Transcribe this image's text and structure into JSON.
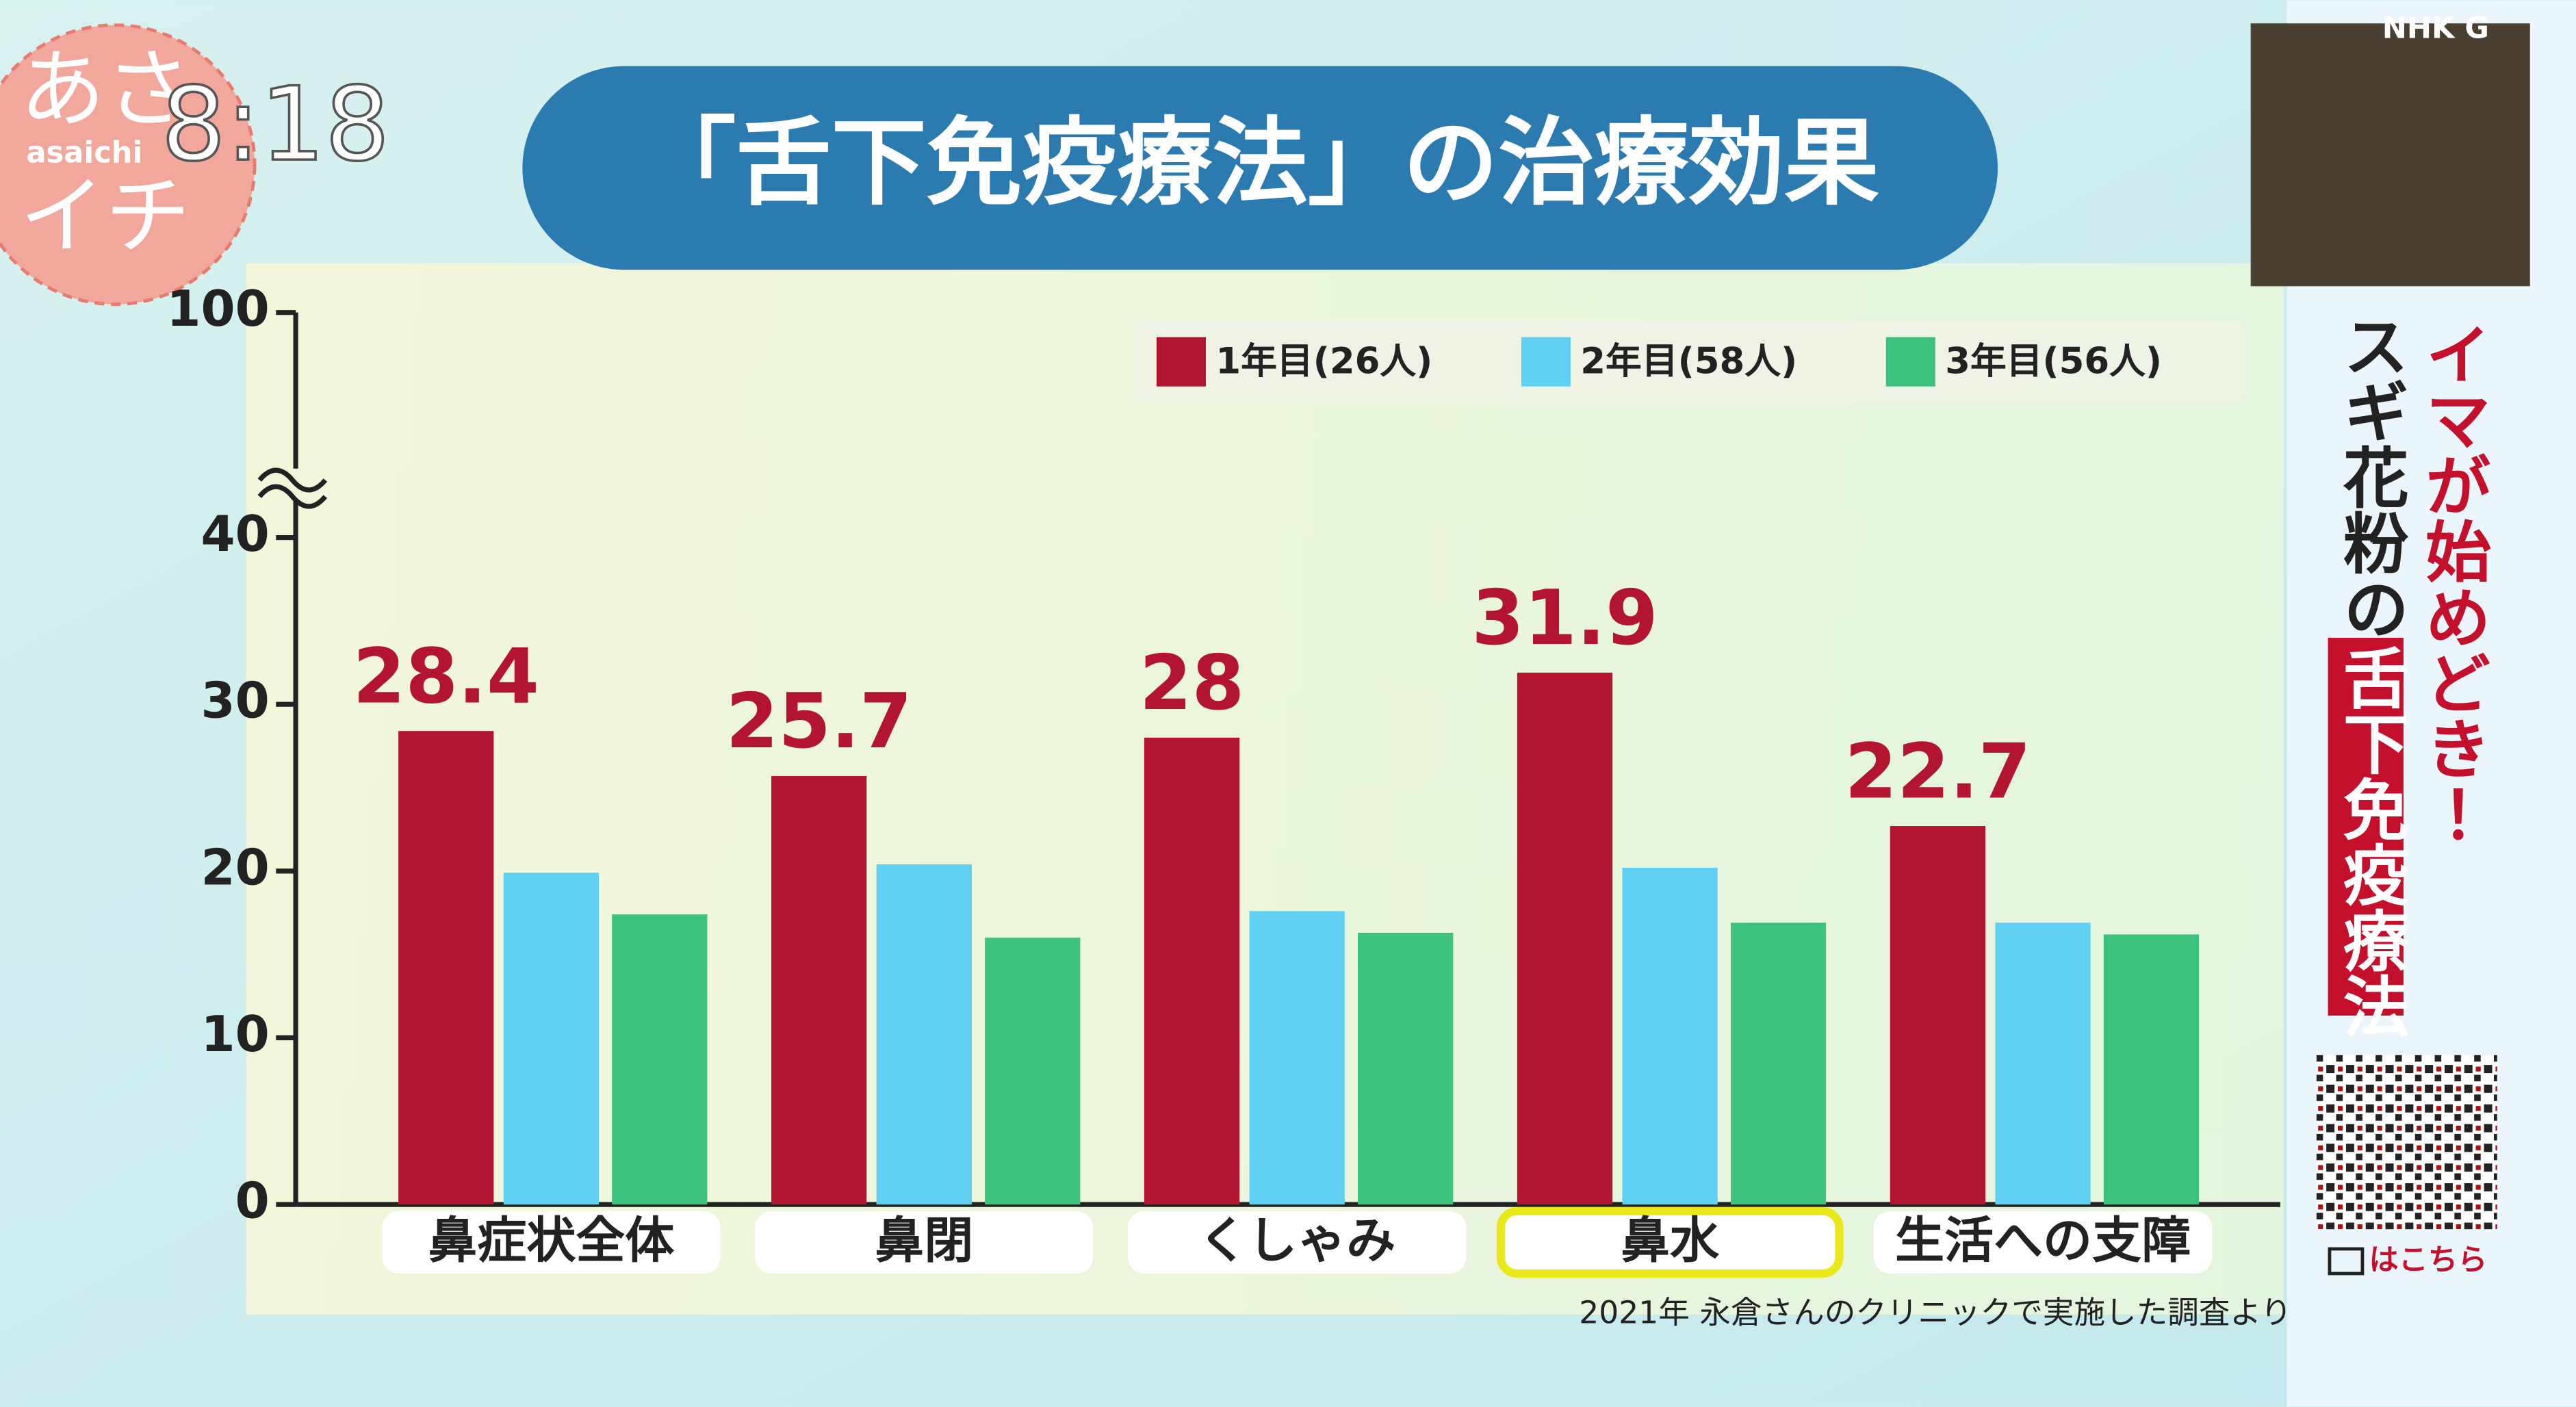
{
  "chart_data": {
    "type": "bar",
    "title": "「舌下免疫療法」の治療効果",
    "categories": [
      "鼻症状全体",
      "鼻閉",
      "くしゃみ",
      "鼻水",
      "生活への支障"
    ],
    "series": [
      {
        "name": "1年目(26人)",
        "color": "#b3142f",
        "values": [
          28.4,
          25.7,
          28,
          31.9,
          22.7
        ],
        "data_labels": true
      },
      {
        "name": "2年目(58人)",
        "color": "#5fd0f2",
        "values": [
          19.9,
          20.4,
          17.6,
          20.2,
          16.9
        ]
      },
      {
        "name": "3年目(56人)",
        "color": "#3cc27c",
        "values": [
          17.4,
          16.0,
          16.3,
          16.9,
          16.2
        ]
      }
    ],
    "ylim": [
      0,
      100
    ],
    "yticks": [
      0,
      10,
      20,
      30,
      40,
      100
    ],
    "axis_break": [
      40,
      100
    ],
    "highlight_index": 3,
    "legend": "top-right",
    "note": "2021年 永倉さんのクリニックで実施した調査より"
  },
  "overlay": {
    "clock": "8:18",
    "logo": "あさ",
    "logo_sub": "asaichi",
    "logo_bottom": "イチ",
    "channel": "NHK G",
    "banner_top": "イマが始めどき！",
    "banner_sub": "スギ花粉の",
    "banner_main": "舌下免疫療法",
    "qr_caption": "はこちら"
  }
}
